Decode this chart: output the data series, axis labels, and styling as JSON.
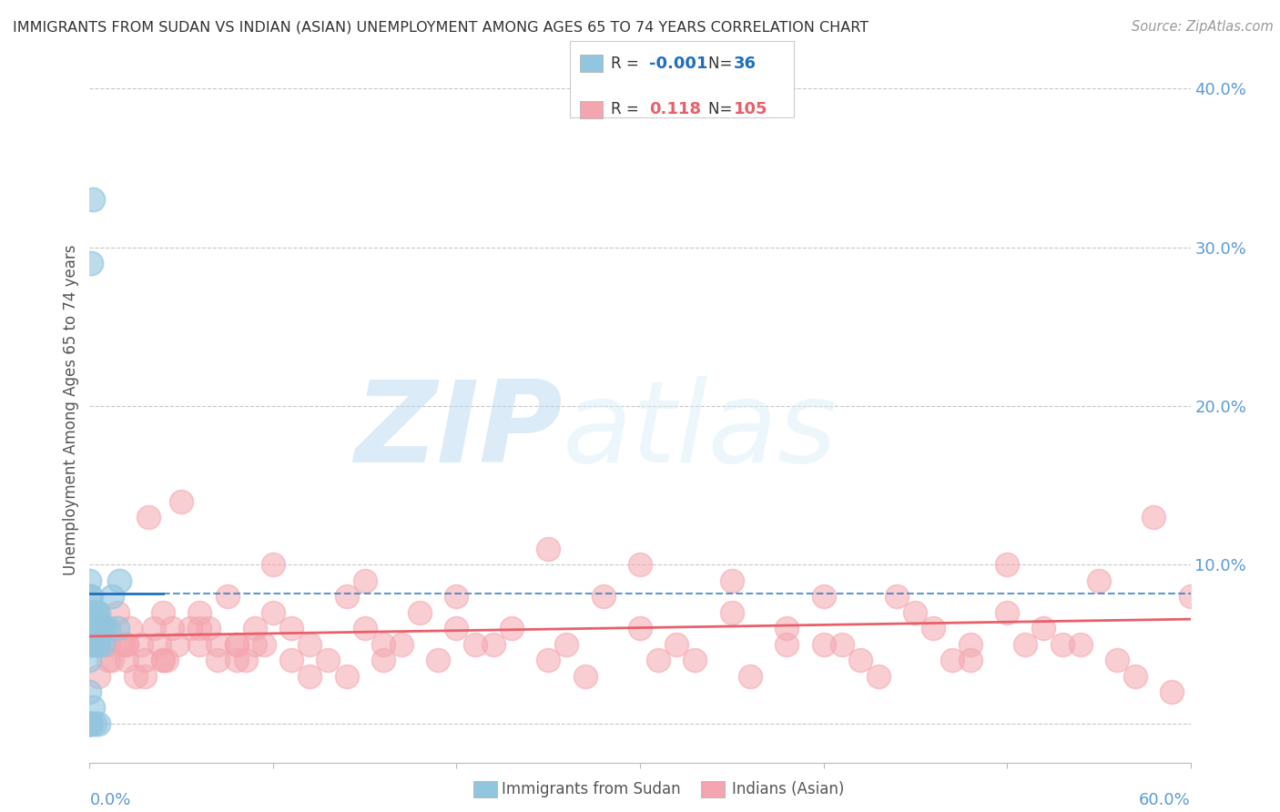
{
  "title": "IMMIGRANTS FROM SUDAN VS INDIAN (ASIAN) UNEMPLOYMENT AMONG AGES 65 TO 74 YEARS CORRELATION CHART",
  "source": "Source: ZipAtlas.com",
  "ylabel": "Unemployment Among Ages 65 to 74 years",
  "xlim": [
    0.0,
    0.6
  ],
  "ylim": [
    -0.025,
    0.42
  ],
  "yticks": [
    0.0,
    0.1,
    0.2,
    0.3,
    0.4
  ],
  "ytick_labels": [
    "",
    "10.0%",
    "20.0%",
    "30.0%",
    "40.0%"
  ],
  "color_sudan": "#92C5DE",
  "color_indian": "#F4A6B0",
  "color_line_sudan": "#1F6EBF",
  "color_line_indian": "#E8606A",
  "color_grid": "#C8C8C8",
  "background_color": "#FFFFFF",
  "sudan_x": [
    0.0,
    0.0,
    0.0,
    0.0,
    0.0,
    0.0,
    0.0,
    0.0,
    0.0,
    0.0,
    0.001,
    0.001,
    0.001,
    0.001,
    0.002,
    0.002,
    0.002,
    0.003,
    0.003,
    0.004,
    0.004,
    0.005,
    0.005,
    0.006,
    0.007,
    0.008,
    0.01,
    0.012,
    0.015,
    0.016,
    0.001,
    0.002,
    0.003,
    0.004,
    0.005,
    0.006
  ],
  "sudan_y": [
    0.0,
    0.0,
    0.0,
    0.02,
    0.04,
    0.06,
    0.07,
    0.08,
    0.06,
    0.09,
    0.0,
    0.05,
    0.07,
    0.08,
    0.01,
    0.05,
    0.06,
    0.0,
    0.07,
    0.05,
    0.06,
    0.0,
    0.07,
    0.06,
    0.05,
    0.06,
    0.06,
    0.08,
    0.06,
    0.09,
    0.29,
    0.33,
    0.06,
    0.07,
    0.05,
    0.06
  ],
  "indian_x": [
    0.005,
    0.008,
    0.01,
    0.012,
    0.015,
    0.018,
    0.02,
    0.022,
    0.025,
    0.028,
    0.03,
    0.032,
    0.035,
    0.038,
    0.04,
    0.042,
    0.045,
    0.048,
    0.05,
    0.055,
    0.06,
    0.065,
    0.07,
    0.075,
    0.08,
    0.085,
    0.09,
    0.095,
    0.1,
    0.11,
    0.12,
    0.13,
    0.14,
    0.15,
    0.16,
    0.18,
    0.2,
    0.22,
    0.25,
    0.28,
    0.3,
    0.32,
    0.35,
    0.38,
    0.4,
    0.42,
    0.44,
    0.46,
    0.48,
    0.5,
    0.52,
    0.54,
    0.56,
    0.58,
    0.6,
    0.005,
    0.01,
    0.02,
    0.03,
    0.04,
    0.06,
    0.08,
    0.1,
    0.15,
    0.2,
    0.25,
    0.3,
    0.35,
    0.4,
    0.45,
    0.5,
    0.55,
    0.07,
    0.09,
    0.11,
    0.14,
    0.17,
    0.19,
    0.23,
    0.26,
    0.31,
    0.36,
    0.41,
    0.47,
    0.51,
    0.02,
    0.04,
    0.06,
    0.08,
    0.12,
    0.16,
    0.21,
    0.27,
    0.33,
    0.38,
    0.43,
    0.48,
    0.53,
    0.57,
    0.59
  ],
  "indian_y": [
    0.05,
    0.06,
    0.05,
    0.04,
    0.07,
    0.05,
    0.04,
    0.06,
    0.03,
    0.05,
    0.04,
    0.13,
    0.06,
    0.05,
    0.07,
    0.04,
    0.06,
    0.05,
    0.14,
    0.06,
    0.07,
    0.06,
    0.04,
    0.08,
    0.05,
    0.04,
    0.06,
    0.05,
    0.07,
    0.06,
    0.05,
    0.04,
    0.08,
    0.06,
    0.05,
    0.07,
    0.06,
    0.05,
    0.04,
    0.08,
    0.06,
    0.05,
    0.07,
    0.06,
    0.05,
    0.04,
    0.08,
    0.06,
    0.05,
    0.07,
    0.06,
    0.05,
    0.04,
    0.13,
    0.08,
    0.03,
    0.04,
    0.05,
    0.03,
    0.04,
    0.05,
    0.04,
    0.1,
    0.09,
    0.08,
    0.11,
    0.1,
    0.09,
    0.08,
    0.07,
    0.1,
    0.09,
    0.05,
    0.05,
    0.04,
    0.03,
    0.05,
    0.04,
    0.06,
    0.05,
    0.04,
    0.03,
    0.05,
    0.04,
    0.05,
    0.05,
    0.04,
    0.06,
    0.05,
    0.03,
    0.04,
    0.05,
    0.03,
    0.04,
    0.05,
    0.03,
    0.04,
    0.05,
    0.03,
    0.02
  ]
}
